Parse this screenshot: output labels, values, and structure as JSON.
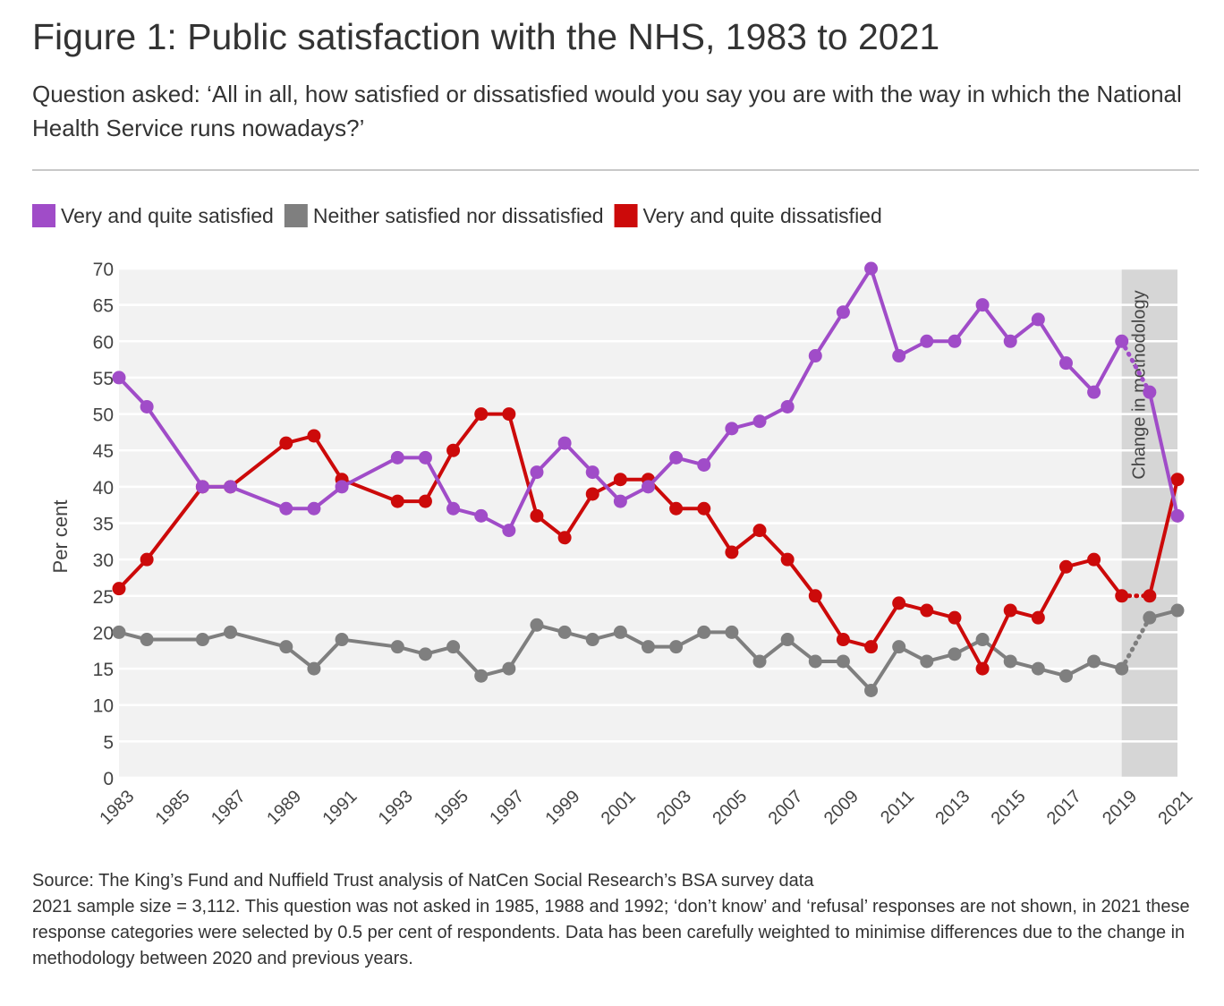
{
  "title": "Figure 1: Public satisfaction with the NHS, 1983 to 2021",
  "subtitle": "Question asked: ‘All in all, how satisfied or dissatisfied would you say you are with the way in which the National Health Service runs nowadays?’",
  "notes": {
    "source": "Source: The King’s Fund and Nuffield Trust analysis of NatCen Social Research’s BSA survey data",
    "footnote": "2021 sample size = 3,112. This question was not asked in 1985, 1988 and 1992; ‘don’t know’ and ‘refusal’ responses are not shown, in 2021 these response categories were selected by 0.5 per cent of respondents. Data has been carefully weighted to minimise differences due to the change in methodology between 2020 and previous years."
  },
  "colors": {
    "satisfied": "#a04cc8",
    "neither": "#7f7f7f",
    "dissatisfied": "#cc0a0a",
    "plot_bg": "#f2f2f2",
    "gridline": "#ffffff",
    "shade": "#d6d6d6"
  },
  "chart_data": {
    "type": "line",
    "title": "Figure 1: Public satisfaction with the NHS, 1983 to 2021",
    "xlabel": "",
    "ylabel": "Per cent",
    "xlim": [
      1983,
      2021
    ],
    "ylim": [
      0,
      70
    ],
    "yticks": [
      0,
      5,
      10,
      15,
      20,
      25,
      30,
      35,
      40,
      45,
      50,
      55,
      60,
      65,
      70
    ],
    "xticks": [
      1983,
      1985,
      1987,
      1989,
      1991,
      1993,
      1995,
      1997,
      1999,
      2001,
      2003,
      2005,
      2007,
      2009,
      2011,
      2013,
      2015,
      2017,
      2019,
      2021
    ],
    "legend_position": "top-left",
    "grid": true,
    "x": [
      1983,
      1984,
      1986,
      1987,
      1989,
      1990,
      1991,
      1993,
      1994,
      1995,
      1996,
      1997,
      1998,
      1999,
      2000,
      2001,
      2002,
      2003,
      2004,
      2005,
      2006,
      2007,
      2008,
      2009,
      2010,
      2011,
      2012,
      2013,
      2014,
      2015,
      2016,
      2017,
      2018,
      2019,
      2020,
      2021
    ],
    "series": [
      {
        "key": "satisfied",
        "name": "Very and quite satisfied",
        "values": [
          55,
          51,
          40,
          40,
          37,
          37,
          40,
          44,
          44,
          37,
          36,
          34,
          42,
          46,
          42,
          38,
          40,
          44,
          43,
          48,
          49,
          51,
          58,
          64,
          70,
          58,
          60,
          60,
          65,
          60,
          63,
          57,
          53,
          60,
          53,
          36
        ]
      },
      {
        "key": "neither",
        "name": "Neither satisfied nor dissatisfied",
        "values": [
          20,
          19,
          19,
          20,
          18,
          15,
          19,
          18,
          17,
          18,
          14,
          15,
          21,
          20,
          19,
          20,
          18,
          18,
          20,
          20,
          16,
          19,
          16,
          16,
          12,
          18,
          16,
          17,
          19,
          16,
          15,
          14,
          16,
          15,
          22,
          23
        ]
      },
      {
        "key": "dissatisfied",
        "name": "Very and quite dissatisfied",
        "values": [
          26,
          30,
          40,
          40,
          46,
          47,
          41,
          38,
          38,
          45,
          50,
          50,
          36,
          33,
          39,
          41,
          41,
          37,
          37,
          31,
          34,
          30,
          25,
          19,
          18,
          24,
          23,
          22,
          15,
          23,
          22,
          29,
          30,
          25,
          25,
          41
        ]
      }
    ],
    "dotted_segment": [
      2019,
      2020
    ],
    "methodology_change": {
      "from": 2019,
      "to": 2021,
      "label": "Change in methodology"
    }
  }
}
